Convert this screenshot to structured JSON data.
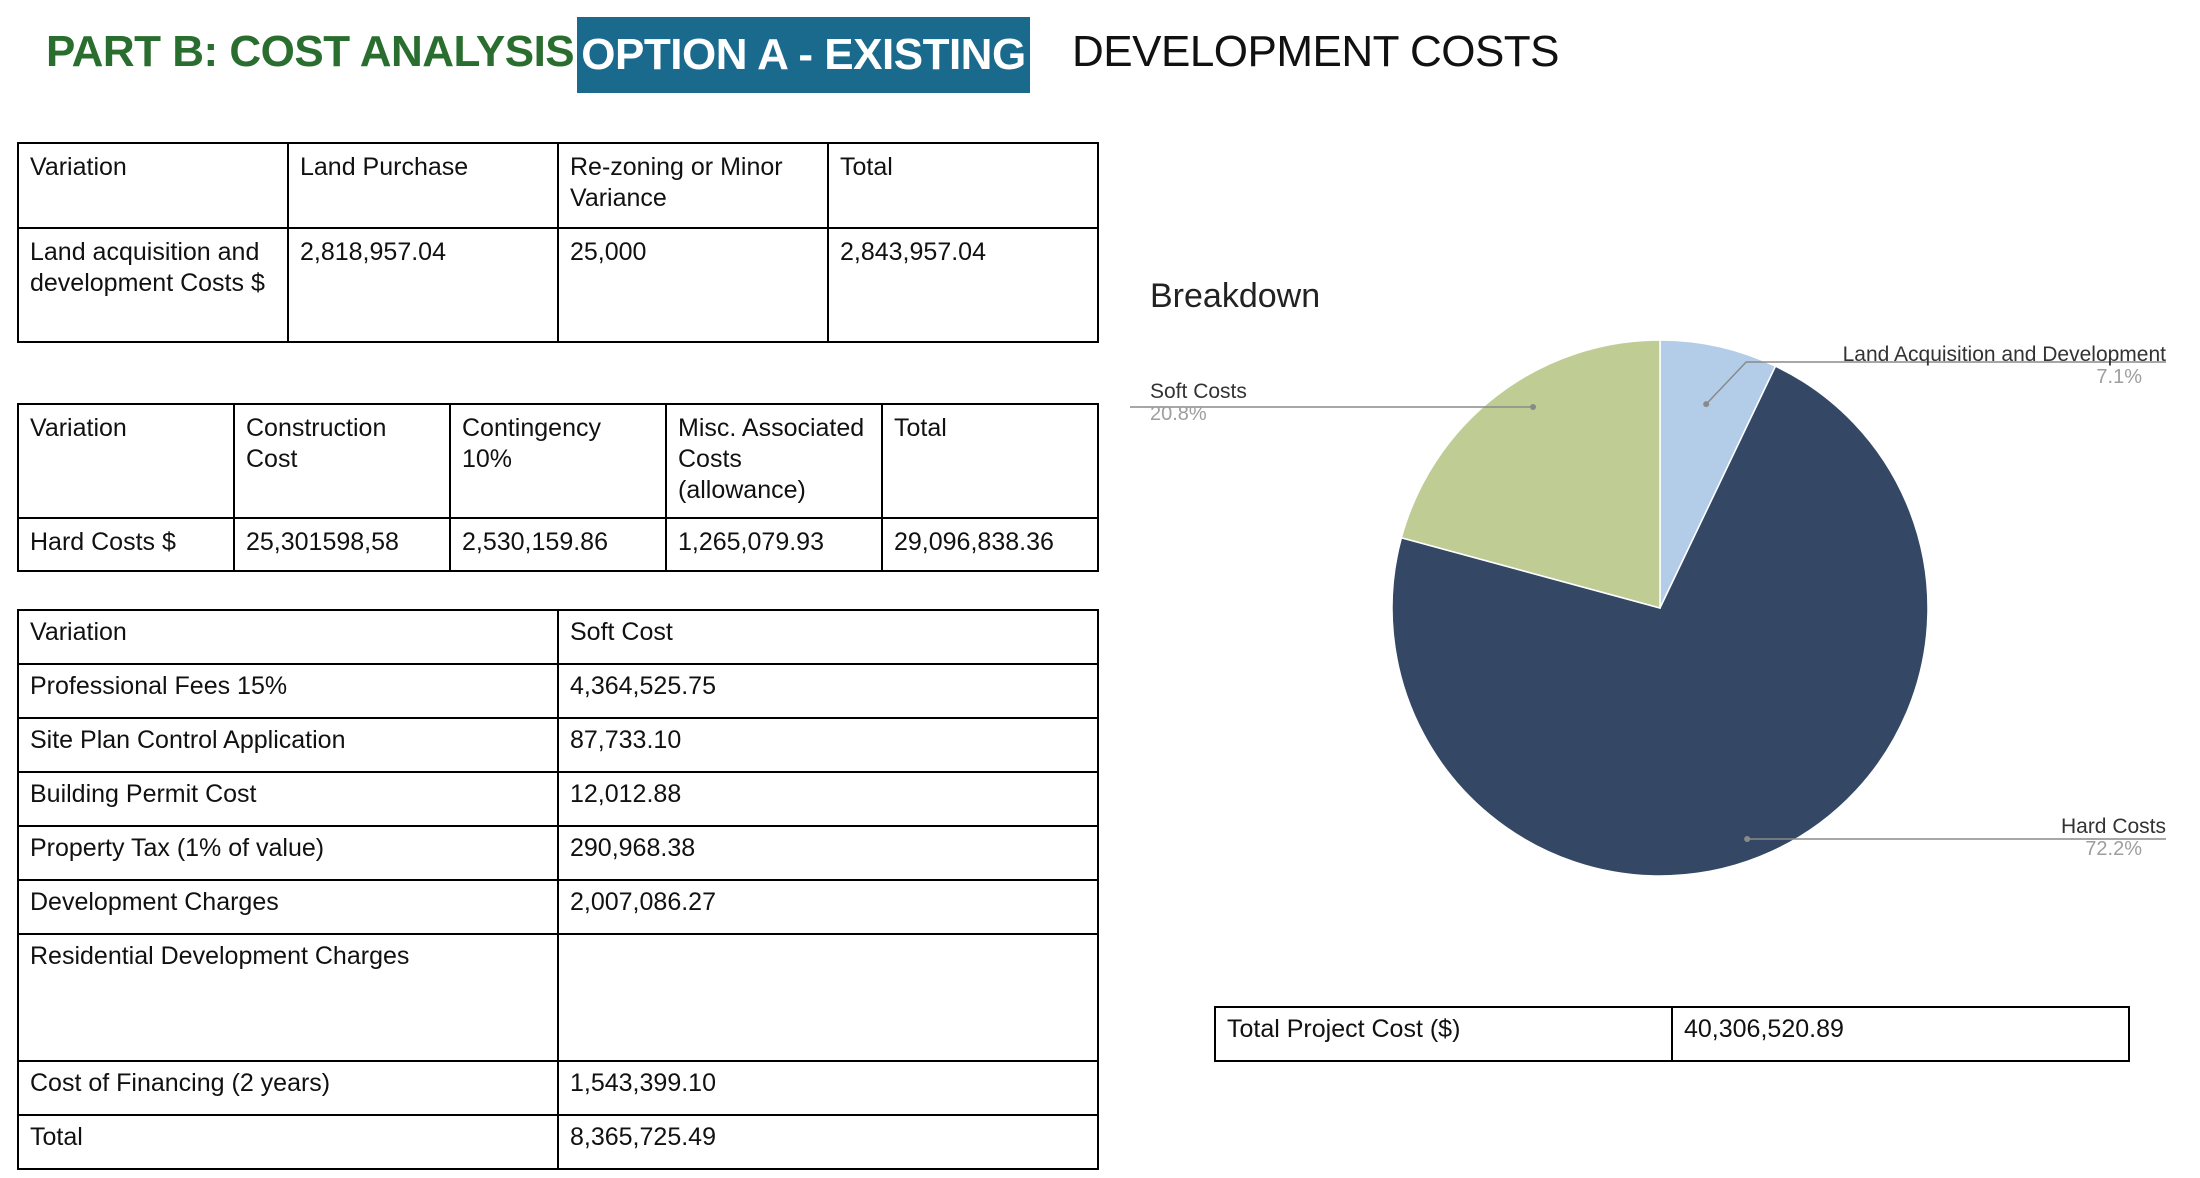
{
  "header": {
    "title": "PART B: COST ANALYSIS",
    "option": "OPTION A - EXISTING",
    "subtitle": "DEVELOPMENT COSTS"
  },
  "land_table": {
    "headers": [
      "Variation",
      "Land Purchase",
      "Re-zoning or Minor Variance",
      "Total"
    ],
    "row": [
      "Land acquisition and development Costs $",
      "2,818,957.04",
      "25,000",
      "2,843,957.04"
    ]
  },
  "hard_table": {
    "headers": [
      "Variation",
      "Construction Cost",
      "Contingency 10%",
      "Misc. Associated Costs (allowance)",
      "Total"
    ],
    "row": [
      "Hard Costs $",
      "25,301598,58",
      "2,530,159.86",
      "1,265,079.93",
      "29,096,838.36"
    ]
  },
  "soft_table": {
    "headers": [
      "Variation",
      "Soft Cost"
    ],
    "rows": [
      [
        "Professional Fees 15%",
        "4,364,525.75"
      ],
      [
        "Site Plan Control Application",
        "87,733.10"
      ],
      [
        "Building Permit Cost",
        "12,012.88"
      ],
      [
        "Property Tax (1% of value)",
        "290,968.38"
      ],
      [
        "Development Charges",
        "2,007,086.27"
      ],
      [
        "Residential Development Charges",
        ""
      ],
      [
        "Cost of Financing (2 years)",
        "1,543,399.10"
      ],
      [
        "Total",
        "8,365,725.49"
      ]
    ]
  },
  "total_table": {
    "label": "Total Project Cost ($)",
    "value": "40,306,520.89"
  },
  "chart_data": {
    "type": "pie",
    "title": "Breakdown",
    "slices": [
      {
        "label": "Land Acquisition and Development",
        "value": 7.1,
        "pct_label": "7.1%",
        "color": "#b3cde9"
      },
      {
        "label": "Hard Costs",
        "value": 72.2,
        "pct_label": "72.2%",
        "color": "#344865"
      },
      {
        "label": "Soft Costs",
        "value": 20.8,
        "pct_label": "20.8%",
        "color": "#bfcd95"
      }
    ],
    "legend": "none (callout labels)"
  }
}
